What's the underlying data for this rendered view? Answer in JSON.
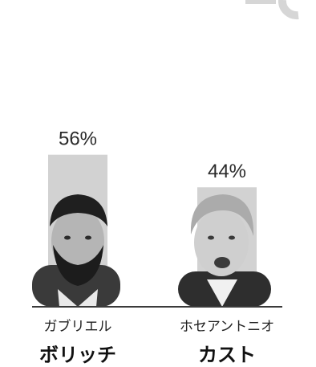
{
  "chart_data": {
    "type": "bar",
    "categories": [
      "ガブリエル ボリッチ",
      "ホセアントニオ カスト"
    ],
    "values": [
      56,
      44
    ],
    "value_labels": [
      "56%",
      "44%"
    ],
    "ylim": [
      0,
      100
    ],
    "grid": false,
    "legend": "none",
    "candidates": [
      {
        "first_name": "ガブリエル",
        "last_name": "ボリッチ"
      },
      {
        "first_name": "ホセアントニオ",
        "last_name": "カスト"
      }
    ],
    "colors": {
      "bar": "#d2d2d2",
      "label": "#2a2a2a",
      "baseline": "#3a3a3a",
      "corner_logo": "#d6d6d6"
    }
  }
}
